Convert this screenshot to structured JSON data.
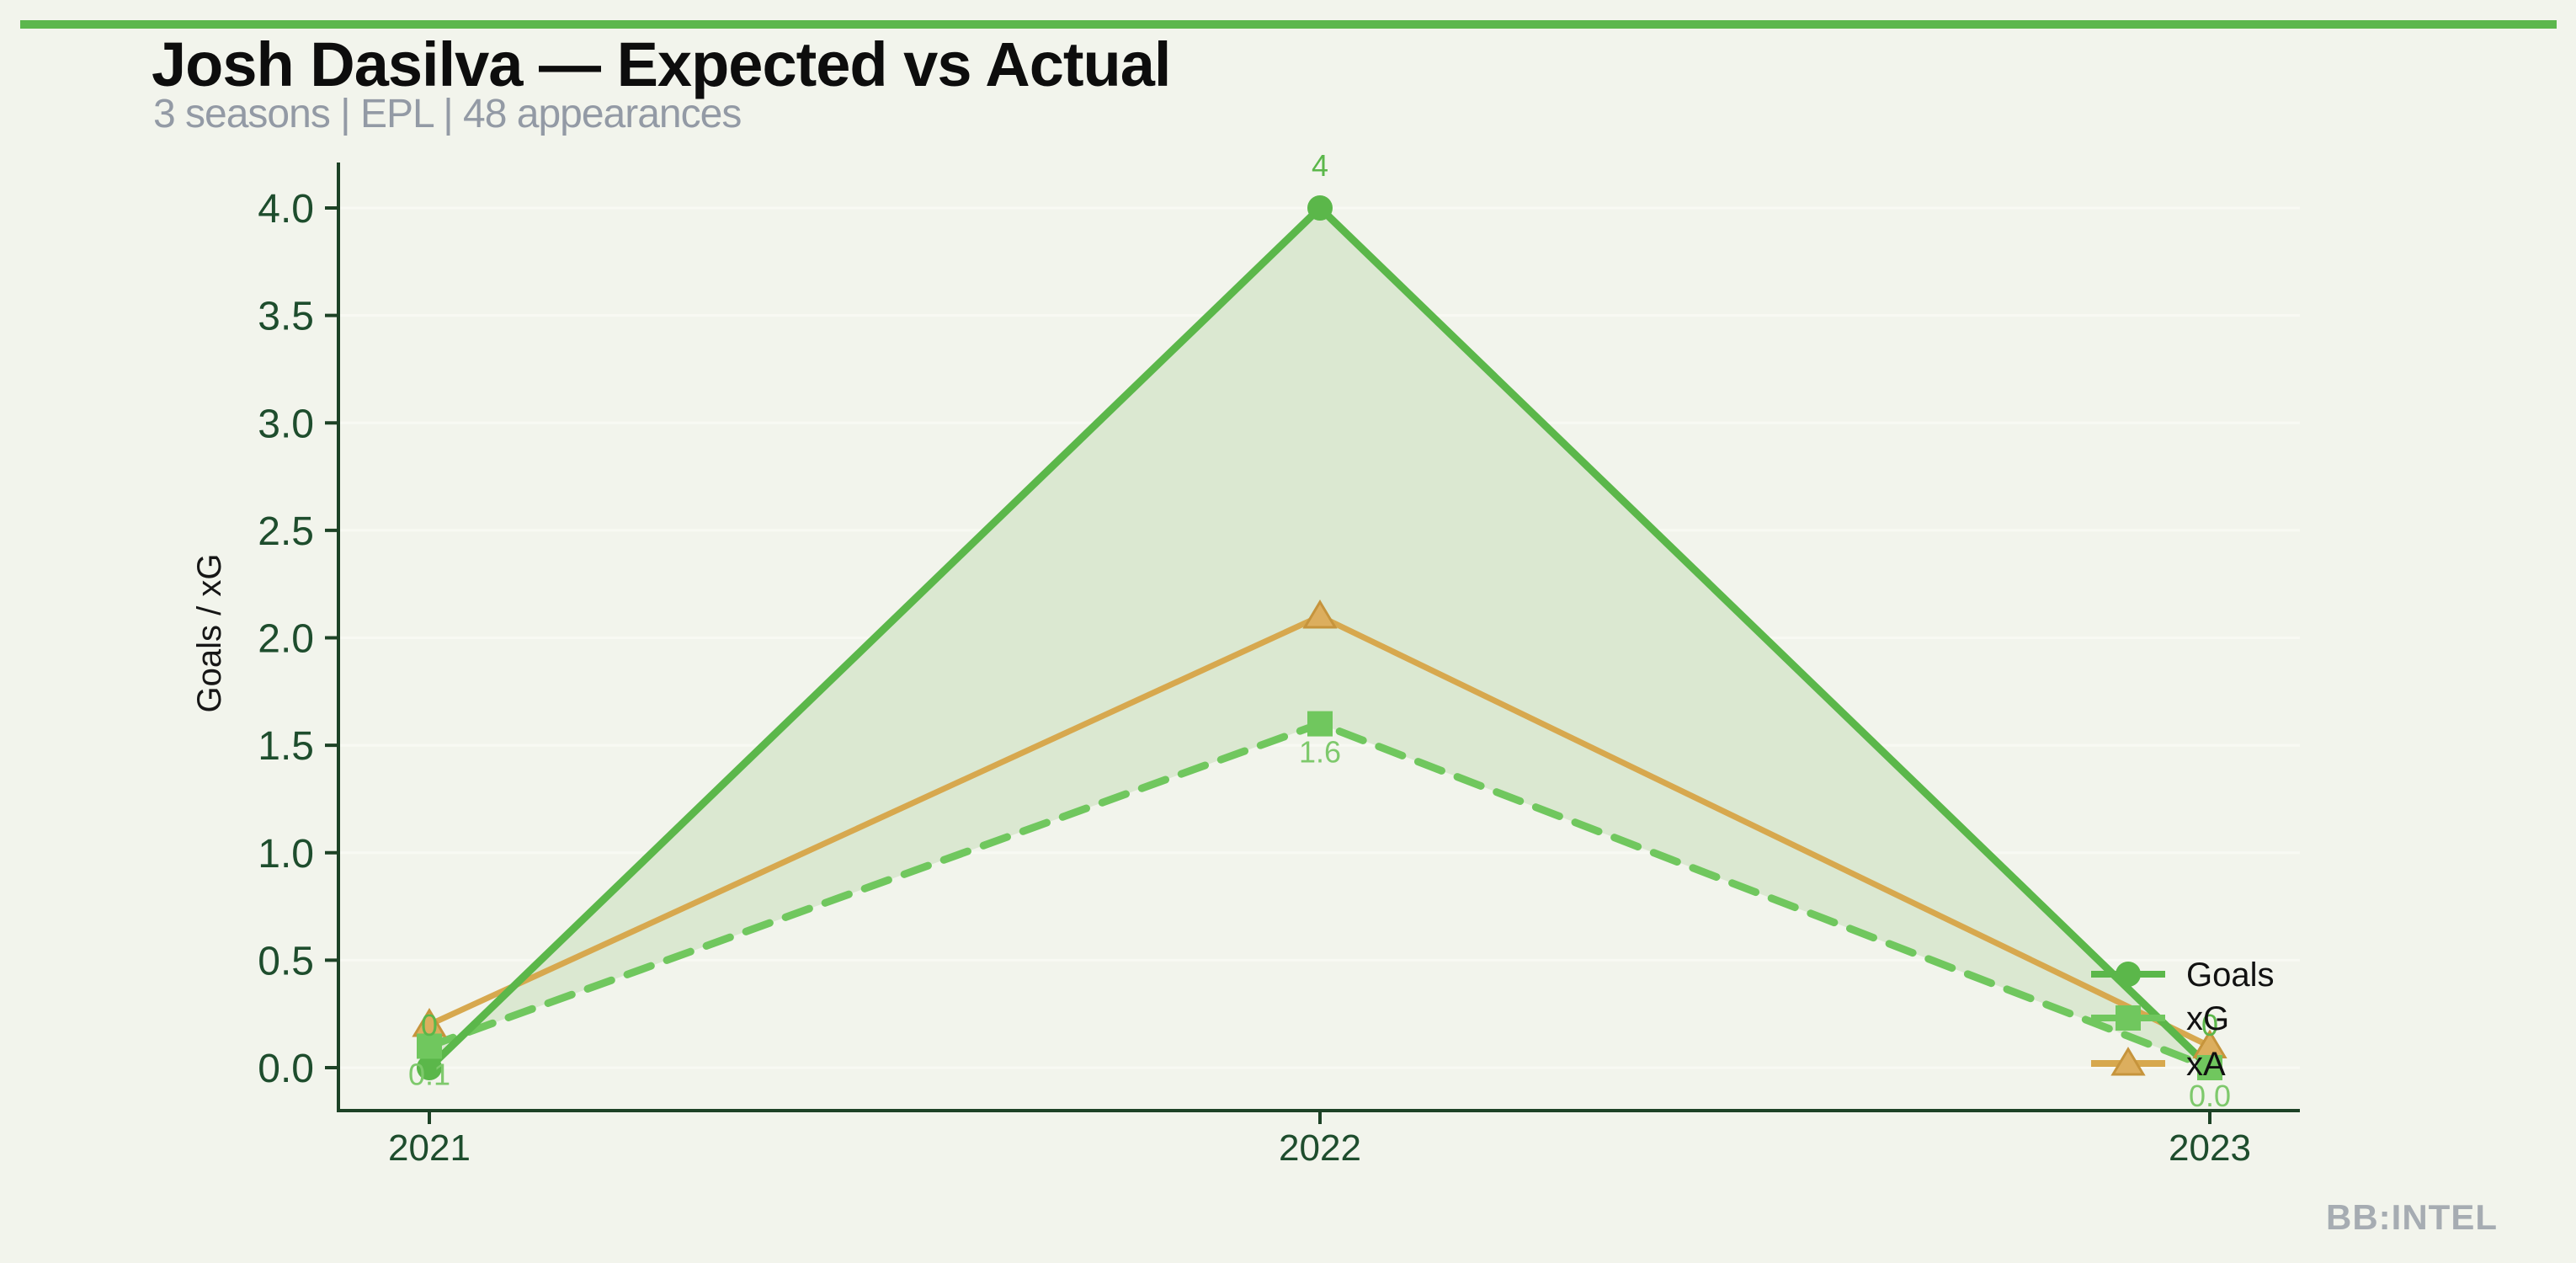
{
  "page": {
    "watermark": "BB:INTEL",
    "background": "#f2f4ec",
    "accent_bar_color": "#5cb74d"
  },
  "header": {
    "title": "Josh Dasilva — Expected vs Actual",
    "subtitle": "3 seasons | EPL | 48 appearances"
  },
  "chart_data": {
    "type": "line",
    "title": "Josh Dasilva — Expected vs Actual",
    "subtitle": "3 seasons | EPL | 48 appearances",
    "categories": [
      "2021",
      "2022",
      "2023"
    ],
    "xlabel": "",
    "ylabel": "Goals / xG",
    "ylim": [
      -0.2,
      4.2
    ],
    "yticks": [
      0.0,
      0.5,
      1.0,
      1.5,
      2.0,
      2.5,
      3.0,
      3.5,
      4.0
    ],
    "ytick_label_format": "one_decimal",
    "grid": "faint horizontal gridlines at every y tick",
    "legend_position": "right edge of plot, stacked rows inline with line ends",
    "series": [
      {
        "name": "Goals",
        "values": [
          0,
          4,
          0
        ],
        "color": "#5bb74a",
        "marker": "circle",
        "line_style": "solid",
        "point_labels": [
          "0",
          "4",
          "0"
        ],
        "label_placement": "above",
        "label_color": "#5bb74a"
      },
      {
        "name": "xG",
        "values": [
          0.1,
          1.6,
          0.0
        ],
        "color": "#70c75e",
        "marker": "square",
        "line_style": "dashed",
        "point_labels": [
          "0.1",
          "1.6",
          "0.0"
        ],
        "label_placement": "below",
        "label_color": "#7ec96c"
      },
      {
        "name": "xA",
        "values": [
          0.2,
          2.1,
          0.1
        ],
        "color": "#d7a84e",
        "marker": "triangle",
        "marker_fill": "#dcae5e",
        "marker_stroke": "#c6943c",
        "line_style": "solid",
        "point_labels": null,
        "label_color": "#d7a84e"
      }
    ],
    "fill_between": {
      "upper": "Goals",
      "lower": "xG",
      "color": "#dbe8d1"
    },
    "style": {
      "axis_color": "#1d4226",
      "tick_label_color": "#1e4d2d",
      "gridline_color": "#f8f9f3",
      "legend_text_color": "#111111",
      "ylabel_color": "#161616"
    }
  }
}
